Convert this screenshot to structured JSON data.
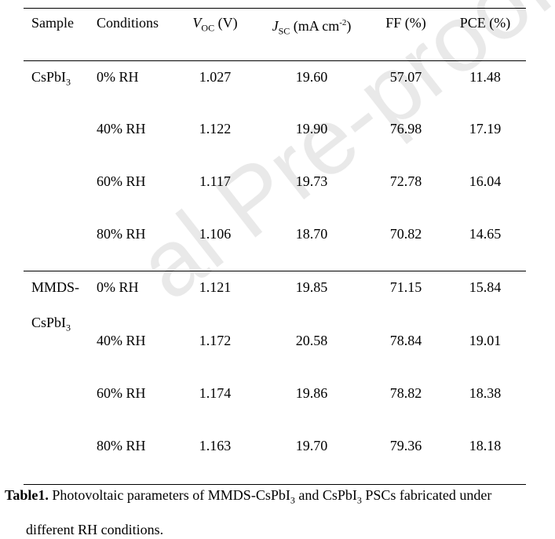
{
  "watermark": "al Pre-proofs",
  "table": {
    "headers": {
      "sample": "Sample",
      "conditions": "Conditions",
      "voc": {
        "sym": "V",
        "sub": "OC",
        "unit": " (V)"
      },
      "jsc": {
        "sym": "J",
        "sub": "SC",
        "unit_pre": " (mA cm",
        "sup": "-2",
        "unit_post": ")"
      },
      "ff": "FF (%)",
      "pce": "PCE (%)"
    },
    "groups": [
      {
        "sample": "CsPbI",
        "sample_sub": "3",
        "rows": [
          {
            "cond": "0% RH",
            "voc": "1.027",
            "jsc": "19.60",
            "ff": "57.07",
            "pce": "11.48"
          },
          {
            "cond": "40% RH",
            "voc": "1.122",
            "jsc": "19.90",
            "ff": "76.98",
            "pce": "17.19"
          },
          {
            "cond": "60% RH",
            "voc": "1.117",
            "jsc": "19.73",
            "ff": "72.78",
            "pce": "16.04"
          },
          {
            "cond": "80% RH",
            "voc": "1.106",
            "jsc": "18.70",
            "ff": "70.82",
            "pce": "14.65"
          }
        ]
      },
      {
        "sample": "MMDS-",
        "sample_line2": "CsPbI",
        "sample_sub": "3",
        "rows": [
          {
            "cond": "0% RH",
            "voc": "1.121",
            "jsc": "19.85",
            "ff": "71.15",
            "pce": "15.84"
          },
          {
            "cond": "40% RH",
            "voc": "1.172",
            "jsc": "20.58",
            "ff": "78.84",
            "pce": "19.01"
          },
          {
            "cond": "60% RH",
            "voc": "1.174",
            "jsc": "19.86",
            "ff": "78.82",
            "pce": "18.38"
          },
          {
            "cond": "80% RH",
            "voc": "1.163",
            "jsc": "19.70",
            "ff": "79.36",
            "pce": "18.18"
          }
        ]
      }
    ]
  },
  "caption": {
    "label": "Table1.",
    "text_a": " Photovoltaic parameters of MMDS-CsPbI",
    "sub_a": "3",
    "text_b": " and CsPbI",
    "sub_b": "3",
    "text_c": " PSCs fabricated under",
    "line2": "different RH conditions."
  }
}
